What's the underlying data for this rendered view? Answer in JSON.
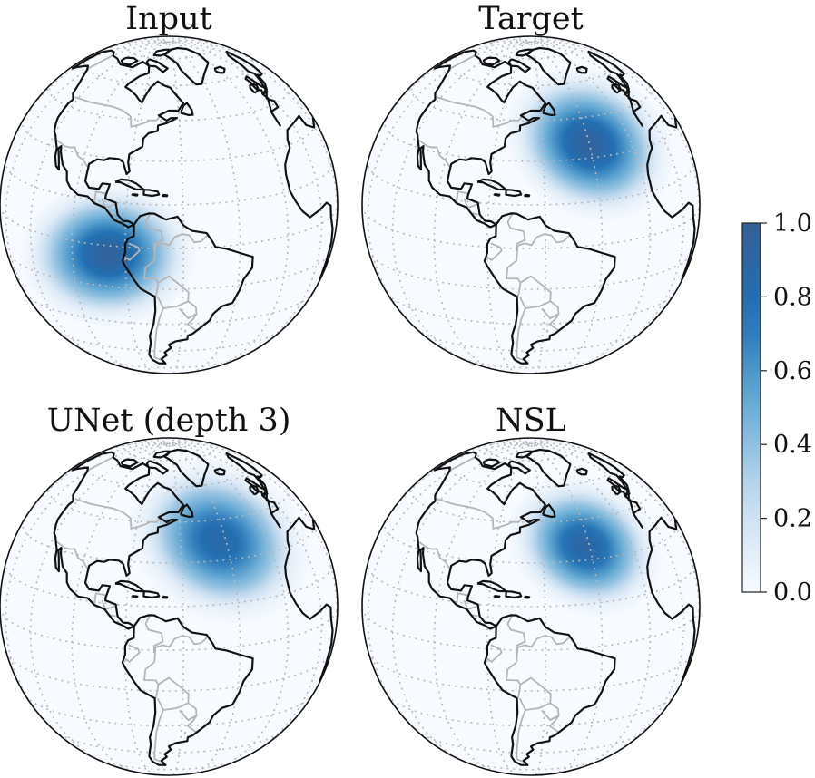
{
  "chart_data": [
    {
      "type": "heatmap",
      "title": "Input",
      "blob": {
        "lon": -86,
        "lat": -3,
        "sigma_deg": 12,
        "peak": 0.95,
        "label": "blob-input"
      }
    },
    {
      "type": "heatmap",
      "title": "Target",
      "blob": {
        "lon": -40,
        "lat": 35,
        "sigma_deg": 12,
        "peak": 0.95,
        "label": "blob-target"
      }
    },
    {
      "type": "heatmap",
      "title": "UNet (depth 3)",
      "blob": {
        "lon": -43,
        "lat": 37,
        "sigma_deg": 13,
        "peak": 0.85,
        "label": "blob-unet"
      }
    },
    {
      "type": "heatmap",
      "title": "NSL",
      "blob": {
        "lon": -42,
        "lat": 35,
        "sigma_deg": 11,
        "peak": 0.9,
        "label": "blob-nsl"
      }
    }
  ],
  "colorbar": {
    "range": [
      0.0,
      1.0
    ],
    "ticks": [
      {
        "value": 0.0,
        "label": "0.0"
      },
      {
        "value": 0.2,
        "label": "0.2"
      },
      {
        "value": 0.4,
        "label": "0.4"
      },
      {
        "value": 0.6,
        "label": "0.6"
      },
      {
        "value": 0.8,
        "label": "0.8"
      },
      {
        "value": 1.0,
        "label": "1.0"
      }
    ],
    "colors": [
      "#f7fbff",
      "#c6dbef",
      "#6baed6",
      "#2171b5",
      "#355f97"
    ]
  },
  "map": {
    "projection": "orthographic",
    "center_lon": -65,
    "center_lat": 15,
    "ocean_color": "#f7fbff",
    "coast_color": "#111111",
    "border_color": "#b5b5b5",
    "gridline_color": "#b8b8b8"
  }
}
